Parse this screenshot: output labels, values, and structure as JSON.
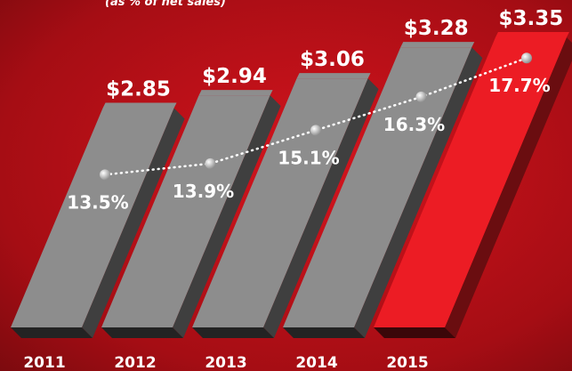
{
  "chart_data": {
    "type": "bar",
    "subtitle": "(as % of net sales)",
    "categories": [
      "2011",
      "2012",
      "2013",
      "2014",
      "2015"
    ],
    "values": [
      2.85,
      2.94,
      3.06,
      3.28,
      3.35
    ],
    "value_labels": [
      "$2.85",
      "$2.94",
      "$3.06",
      "$3.28",
      "$3.35"
    ],
    "colors": [
      "#8d8d8d",
      "#8d8d8d",
      "#8d8d8d",
      "#8d8d8d",
      "#ec1c24"
    ],
    "ylim": [
      1.3,
      3.4
    ],
    "overlay": {
      "type": "line",
      "values": [
        13.5,
        13.9,
        15.1,
        16.3,
        17.7
      ],
      "value_labels": [
        "13.5%",
        "13.9%",
        "15.1%",
        "16.3%",
        "17.7%"
      ],
      "color": "#ffffff",
      "y2lim": [
        8,
        18.7
      ]
    }
  }
}
